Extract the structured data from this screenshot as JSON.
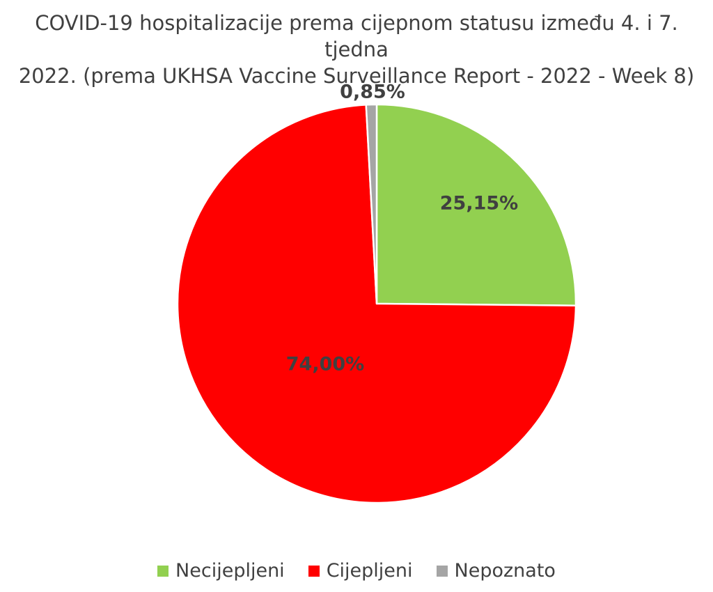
{
  "chart_data": {
    "type": "pie",
    "title_lines": [
      "COVID-19 hospitalizacije prema cijepnom statusu između 4. i 7. tjedna",
      "2022. (prema UKHSA Vaccine Surveillance Report - 2022 - Week 8)"
    ],
    "slices": [
      {
        "name": "Necijepljeni",
        "value": 25.15,
        "label": "25,15%",
        "color": "#92D050"
      },
      {
        "name": "Cijepljeni",
        "value": 74.0,
        "label": "74,00%",
        "color": "#FF0000"
      },
      {
        "name": "Nepoznato",
        "value": 0.85,
        "label": "0,85%",
        "color": "#A5A5A5"
      }
    ],
    "start_angle": "top, clockwise",
    "legend_position": "bottom"
  }
}
